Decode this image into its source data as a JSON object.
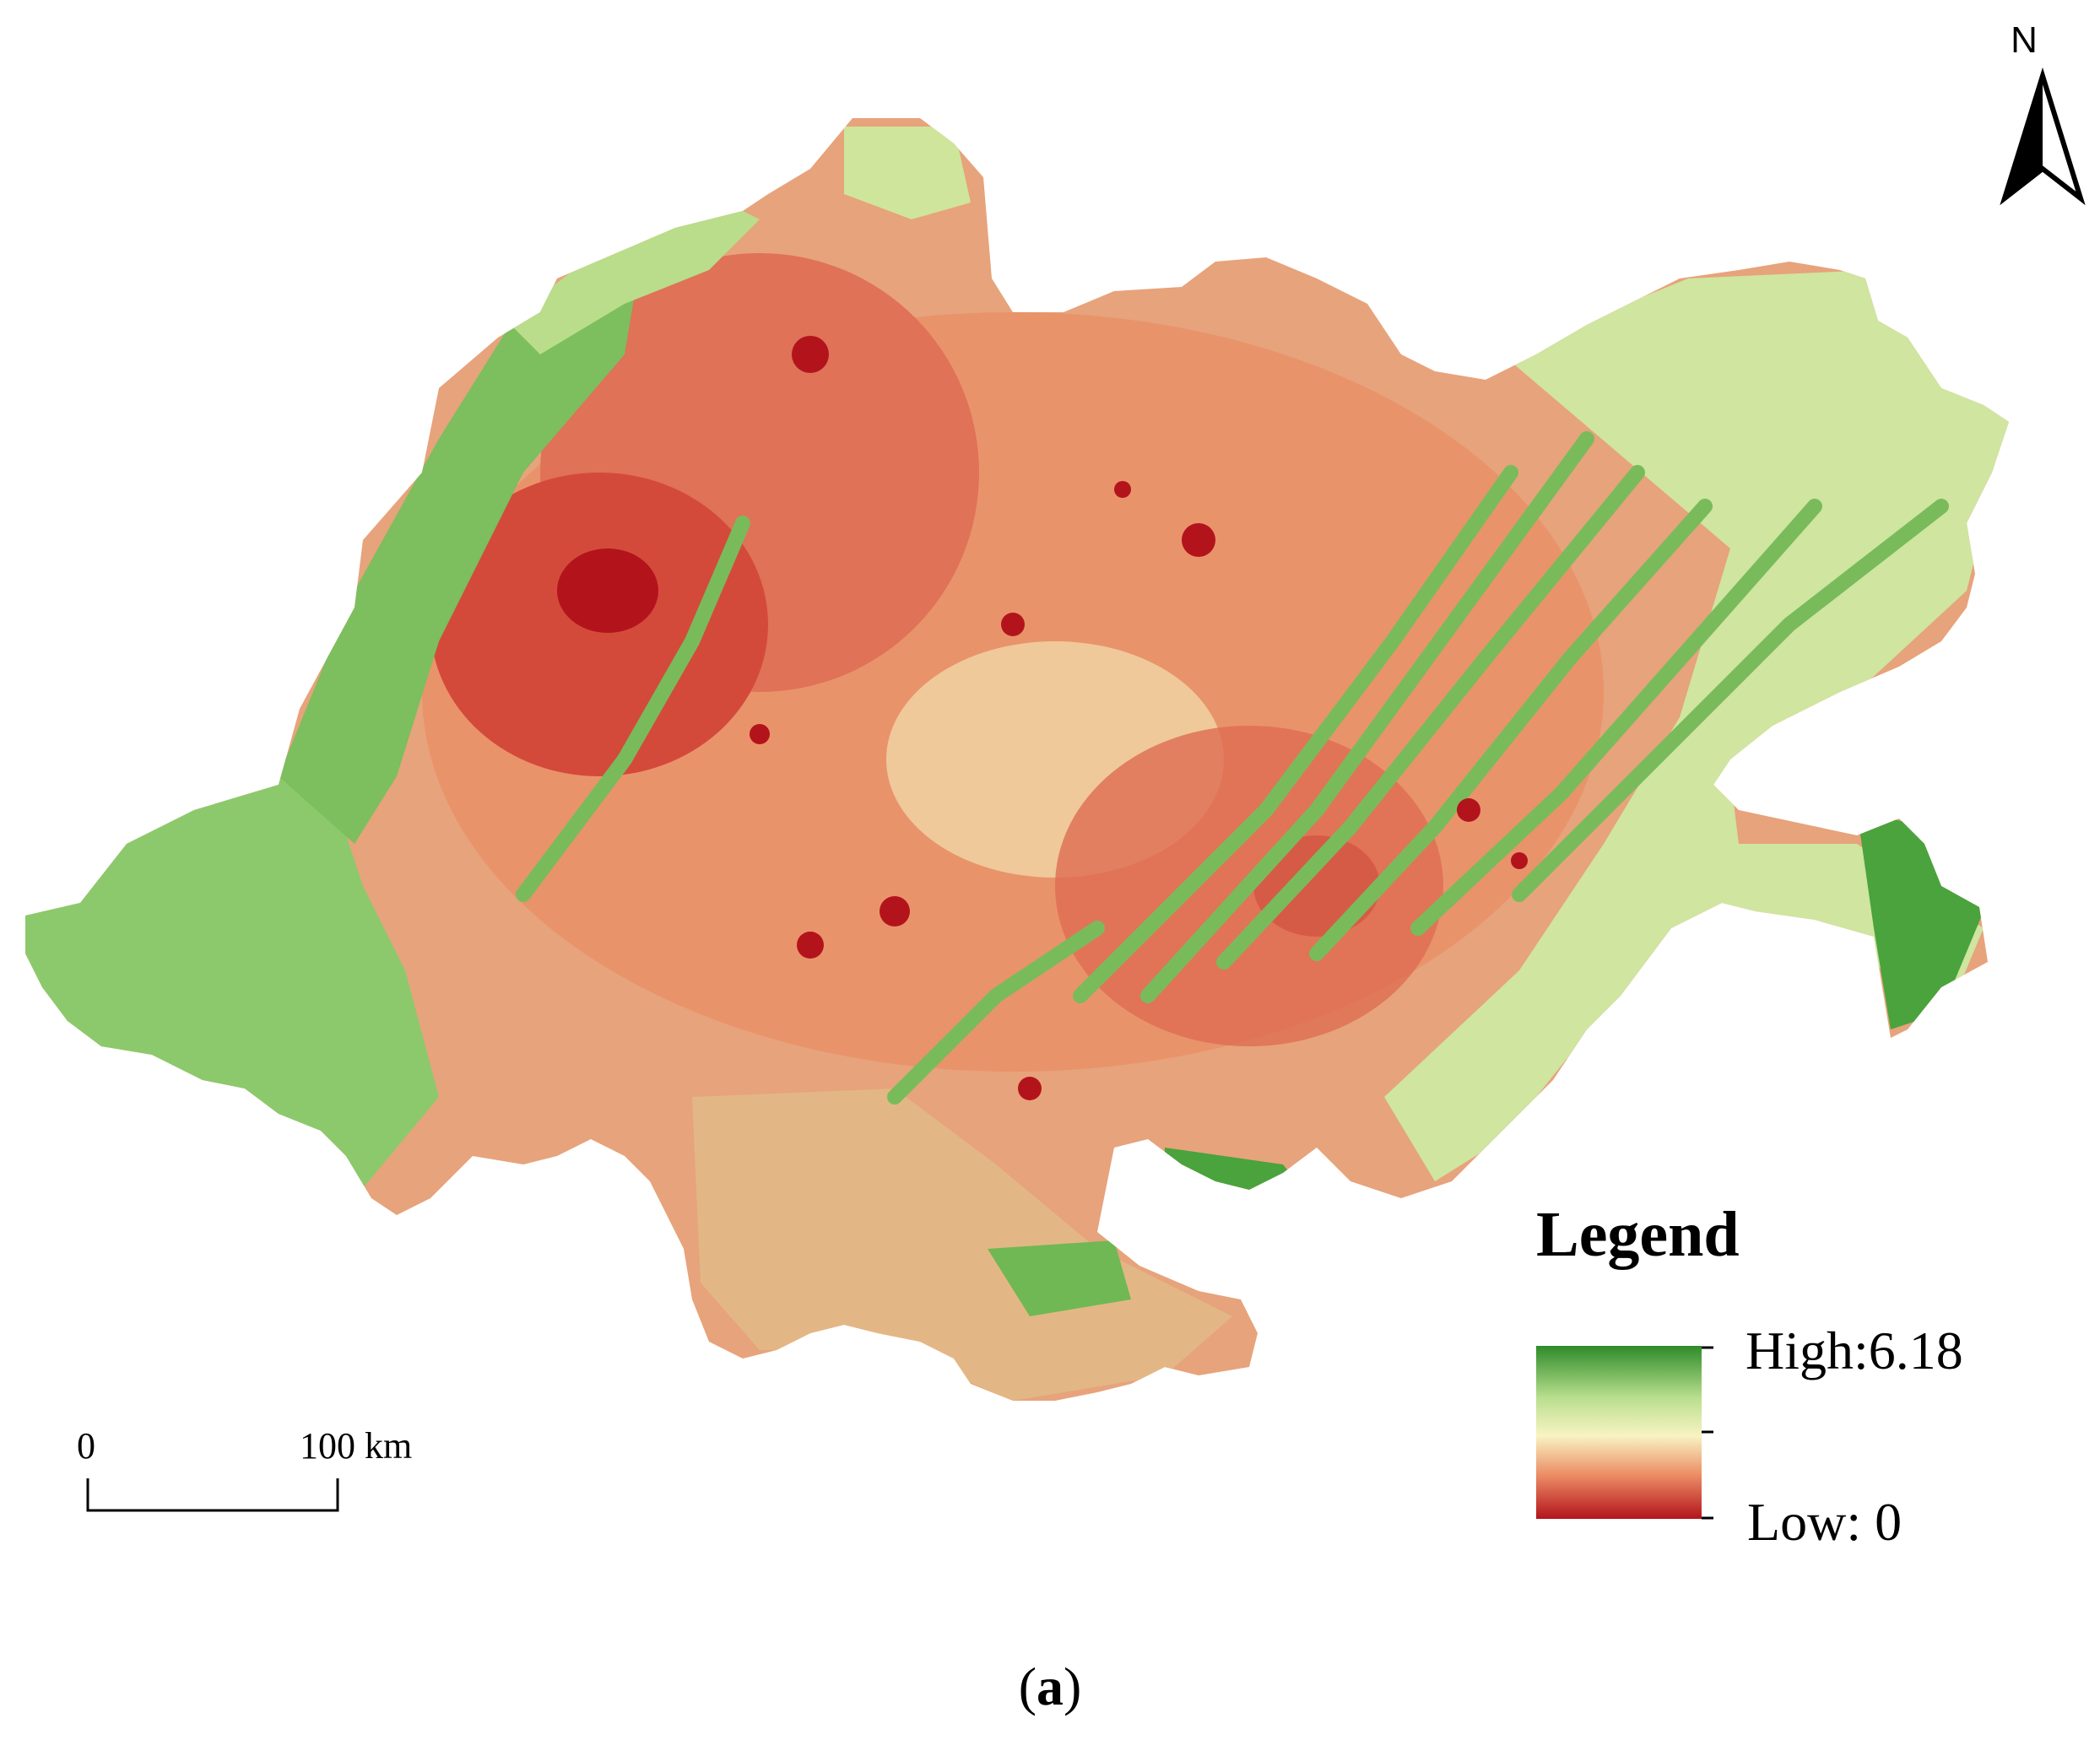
{
  "map": {
    "region_description": "Raster index map of the study region",
    "colors": {
      "high": "#2e8b2a",
      "mid_high": "#c7e49a",
      "mid": "#f7f0b8",
      "mid_low": "#ec8a63",
      "low": "#b3141c"
    }
  },
  "north_arrow": {
    "letter": "N"
  },
  "scale_bar": {
    "start_label": "0",
    "end_label": "100 km"
  },
  "legend": {
    "title": "Legend",
    "high_label": "High:6.18",
    "low_label": "Low: 0",
    "high_value": 6.18,
    "low_value": 0
  },
  "caption": {
    "open": "(",
    "letter": "a",
    "close": ")"
  }
}
